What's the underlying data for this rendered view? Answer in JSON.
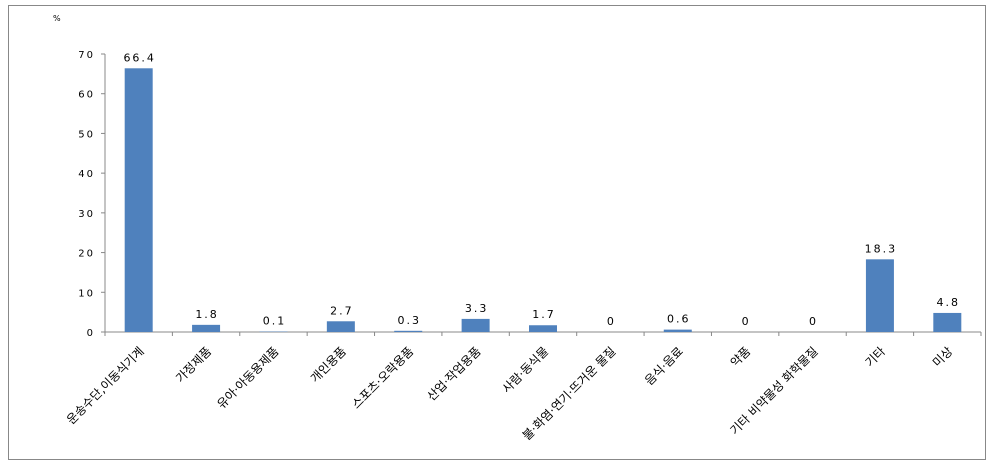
{
  "chart_data": {
    "type": "bar",
    "y_unit": "%",
    "categories": [
      "운송수단,이동식기계",
      "가정제품",
      "유아·아동용제품",
      "개인용품",
      "스포츠·오락용품",
      "산업·작업용품",
      "사람·동식물",
      "불·화염·연기·뜨거운 물질",
      "음식·음료",
      "약품",
      "기타 비약물성 화학물질",
      "기타",
      "미상"
    ],
    "values": [
      66.4,
      1.8,
      0.1,
      2.7,
      0.3,
      3.3,
      1.7,
      0,
      0.6,
      0,
      0,
      18.3,
      4.8
    ],
    "value_labels": [
      "66.4",
      "1.8",
      "0.1",
      "2.7",
      "0.3",
      "3.3",
      "1.7",
      "0",
      "0.6",
      "0",
      "0",
      "18.3",
      "4.8"
    ],
    "yticks": [
      0,
      10,
      20,
      30,
      40,
      50,
      60,
      70
    ],
    "ytick_labels": [
      "0",
      "10",
      "20",
      "30",
      "40",
      "50",
      "60",
      "70"
    ],
    "ylim": [
      0,
      70
    ],
    "grid": false,
    "legend": "none",
    "colors": {
      "bar": "#4f81bd",
      "axis": "#888888"
    }
  }
}
